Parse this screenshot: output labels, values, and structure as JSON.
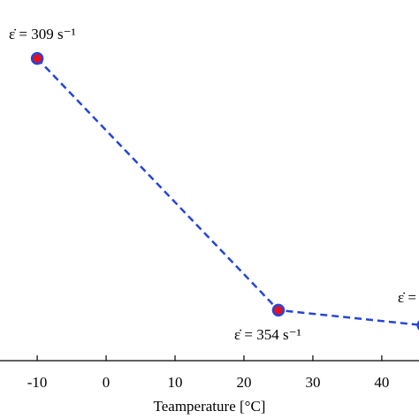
{
  "chart_data": {
    "type": "line",
    "x_label": "Teamperature [°C]",
    "x": [
      -10,
      25,
      46
    ],
    "series": [
      {
        "color": "#2446d8",
        "marker_color": "#e8101c",
        "values": [
          83.8,
          14.0,
          9.8
        ]
      }
    ],
    "annotations": [
      "ε̇ = 309 s⁻¹",
      "ε̇ = 354 s⁻¹",
      "ε̇ ="
    ],
    "xlim": [
      -15.4,
      45.4
    ],
    "ylim": [
      0,
      100
    ],
    "xticks": [
      -10,
      0,
      10,
      20,
      30,
      40
    ],
    "grid": false
  }
}
